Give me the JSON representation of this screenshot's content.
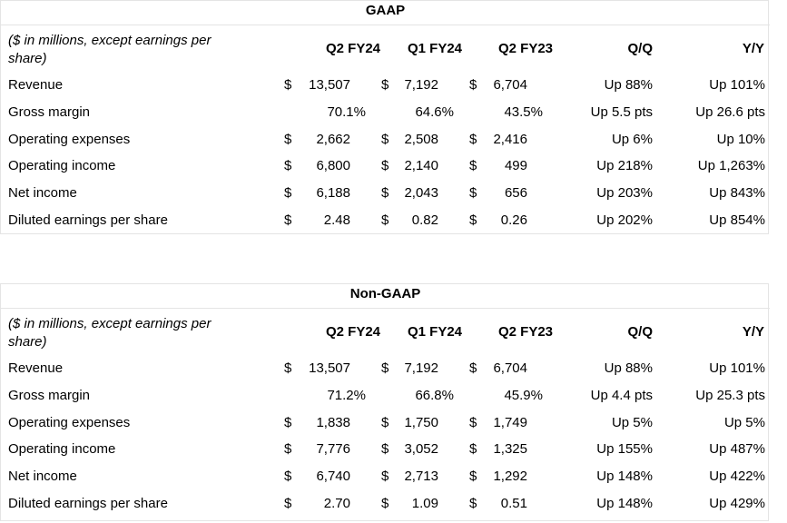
{
  "tables": [
    {
      "title": "GAAP",
      "desc": "($ in millions, except earnings per share)",
      "columns": [
        "Q2 FY24",
        "Q1 FY24",
        "Q2 FY23",
        "Q/Q",
        "Y/Y"
      ],
      "rows": [
        {
          "label": "Revenue",
          "c1": "13,507",
          "c2": "7,192",
          "c3": "6,704",
          "d1": "$",
          "d2": "$",
          "d3": "$",
          "qq": "Up 88%",
          "yy": "Up 101%"
        },
        {
          "label": "Gross margin",
          "c1": "70.1%",
          "c2": "64.6%",
          "c3": "43.5%",
          "d1": "",
          "d2": "",
          "d3": "",
          "qq": "Up 5.5 pts",
          "yy": "Up 26.6 pts"
        },
        {
          "label": "Operating expenses",
          "c1": "2,662",
          "c2": "2,508",
          "c3": "2,416",
          "d1": "$",
          "d2": "$",
          "d3": "$",
          "qq": "Up 6%",
          "yy": "Up 10%"
        },
        {
          "label": "Operating income",
          "c1": "6,800",
          "c2": "2,140",
          "c3": "499",
          "d1": "$",
          "d2": "$",
          "d3": "$",
          "qq": "Up 218%",
          "yy": "Up 1,263%"
        },
        {
          "label": "Net income",
          "c1": "6,188",
          "c2": "2,043",
          "c3": "656",
          "d1": "$",
          "d2": "$",
          "d3": "$",
          "qq": "Up 203%",
          "yy": "Up 843%"
        },
        {
          "label": "Diluted earnings per share",
          "c1": "2.48",
          "c2": "0.82",
          "c3": "0.26",
          "d1": "$",
          "d2": "$",
          "d3": "$",
          "qq": "Up 202%",
          "yy": "Up 854%"
        }
      ]
    },
    {
      "title": "Non-GAAP",
      "desc": "($ in millions, except earnings per share)",
      "columns": [
        "Q2 FY24",
        "Q1 FY24",
        "Q2 FY23",
        "Q/Q",
        "Y/Y"
      ],
      "rows": [
        {
          "label": "Revenue",
          "c1": "13,507",
          "c2": "7,192",
          "c3": "6,704",
          "d1": "$",
          "d2": "$",
          "d3": "$",
          "qq": "Up 88%",
          "yy": "Up 101%"
        },
        {
          "label": "Gross margin",
          "c1": "71.2%",
          "c2": "66.8%",
          "c3": "45.9%",
          "d1": "",
          "d2": "",
          "d3": "",
          "qq": "Up 4.4 pts",
          "yy": "Up 25.3 pts"
        },
        {
          "label": "Operating expenses",
          "c1": "1,838",
          "c2": "1,750",
          "c3": "1,749",
          "d1": "$",
          "d2": "$",
          "d3": "$",
          "qq": "Up 5%",
          "yy": "Up 5%"
        },
        {
          "label": "Operating income",
          "c1": "7,776",
          "c2": "3,052",
          "c3": "1,325",
          "d1": "$",
          "d2": "$",
          "d3": "$",
          "qq": "Up 155%",
          "yy": "Up 487%"
        },
        {
          "label": "Net income",
          "c1": "6,740",
          "c2": "2,713",
          "c3": "1,292",
          "d1": "$",
          "d2": "$",
          "d3": "$",
          "qq": "Up 148%",
          "yy": "Up 422%"
        },
        {
          "label": "Diluted earnings per share",
          "c1": "2.70",
          "c2": "1.09",
          "c3": "0.51",
          "d1": "$",
          "d2": "$",
          "d3": "$",
          "qq": "Up 148%",
          "yy": "Up 429%"
        }
      ]
    }
  ]
}
